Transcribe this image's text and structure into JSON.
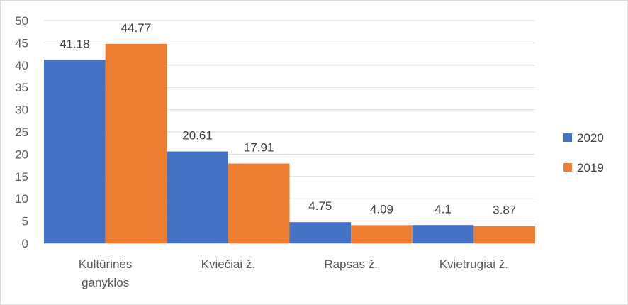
{
  "chart_data": {
    "type": "bar",
    "categories": [
      [
        "Kultūrinės",
        "ganyklos"
      ],
      [
        "Kviečiai ž."
      ],
      [
        "Rapsas ž."
      ],
      [
        "Kvietrugiai ž."
      ]
    ],
    "series": [
      {
        "name": "2020",
        "values": [
          41.18,
          20.61,
          4.75,
          4.1
        ],
        "labels": [
          "41.18",
          "20.61",
          "4.75",
          "4.1"
        ],
        "color": "#4472c4"
      },
      {
        "name": "2019",
        "values": [
          44.77,
          17.91,
          4.09,
          3.87
        ],
        "labels": [
          "44.77",
          "17.91",
          "4.09",
          "3.87"
        ],
        "color": "#ed7d31"
      }
    ],
    "yticks": [
      0,
      5,
      10,
      15,
      20,
      25,
      30,
      35,
      40,
      45,
      50
    ],
    "ylim": [
      0,
      50
    ],
    "grid": true,
    "legend": "right"
  }
}
